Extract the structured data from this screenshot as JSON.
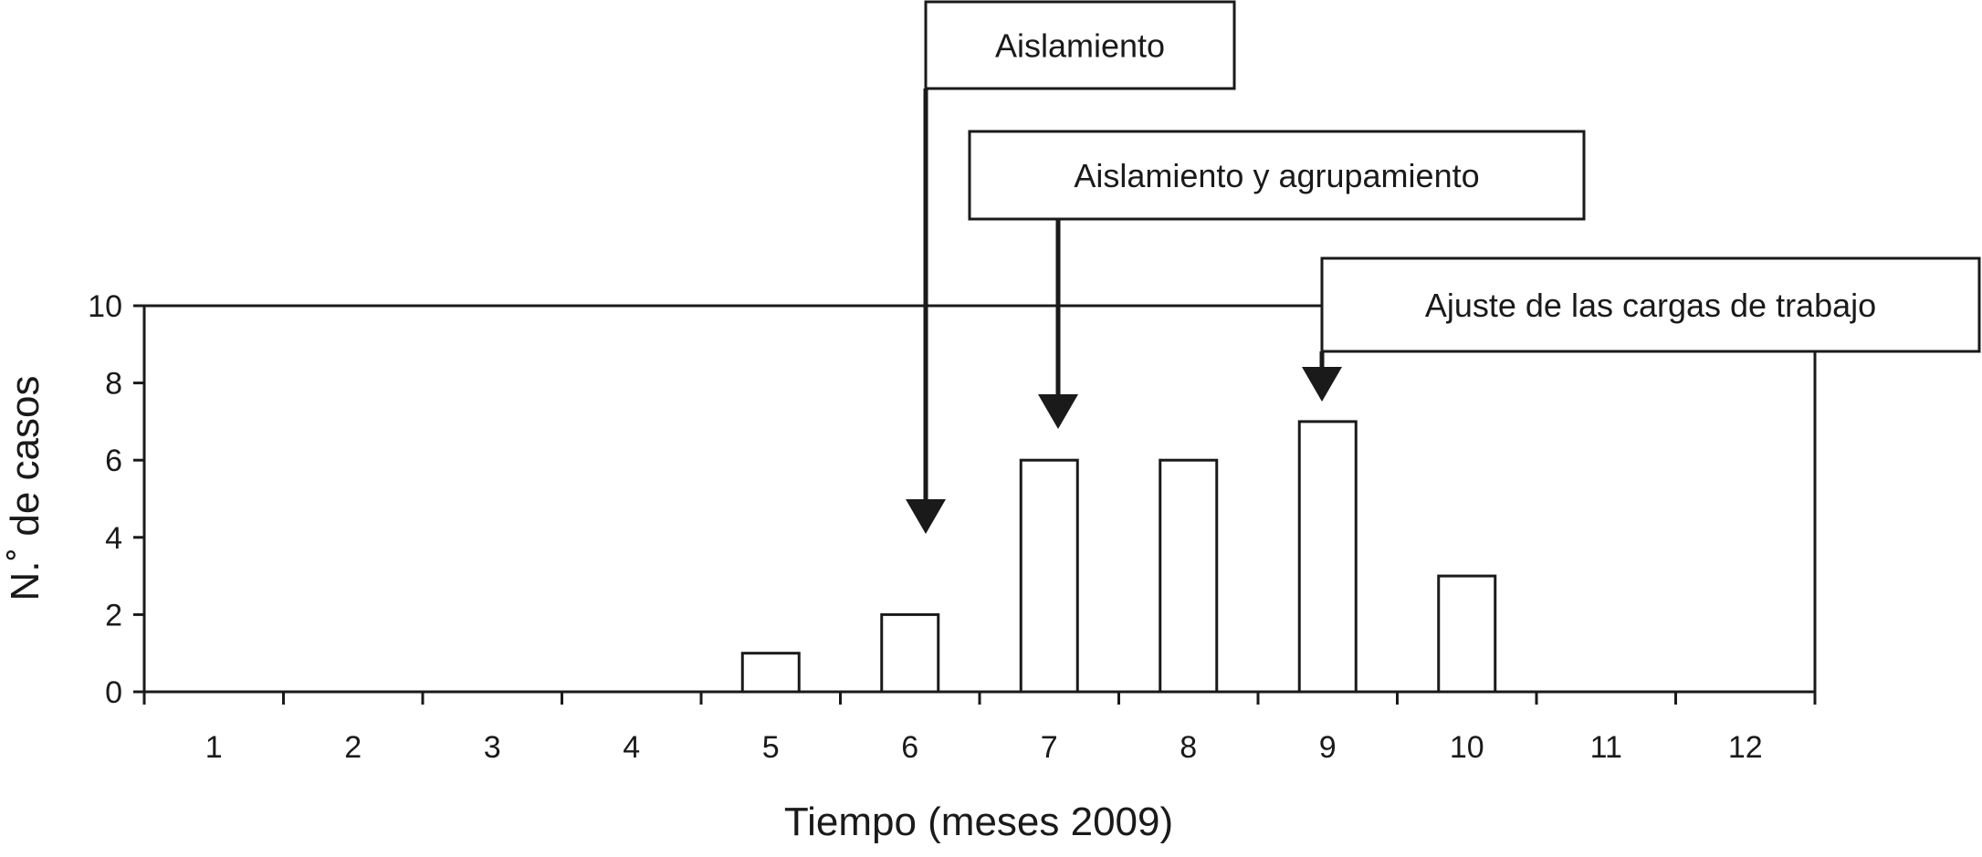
{
  "chart_data": {
    "type": "bar",
    "title": "",
    "xlabel": "Tiempo (meses 2009)",
    "ylabel": "N.˚ de casos",
    "categories": [
      "1",
      "2",
      "3",
      "4",
      "5",
      "6",
      "7",
      "8",
      "9",
      "10",
      "11",
      "12"
    ],
    "values": [
      0,
      0,
      0,
      0,
      1,
      2,
      6,
      6,
      7,
      3,
      0,
      0
    ],
    "ylim": [
      0,
      10
    ],
    "yticks": [
      "0",
      "2",
      "4",
      "6",
      "8",
      "10"
    ],
    "grid": false,
    "colors": {
      "bar_fill": "#ffffff",
      "stroke": "#1a1a1a"
    },
    "annotations": [
      {
        "text": "Aislamiento",
        "target_month": "6"
      },
      {
        "text": "Aislamiento y agrupamiento",
        "target_month": "7"
      },
      {
        "text": "Ajuste de las cargas de trabajo",
        "target_month": "9"
      }
    ]
  }
}
